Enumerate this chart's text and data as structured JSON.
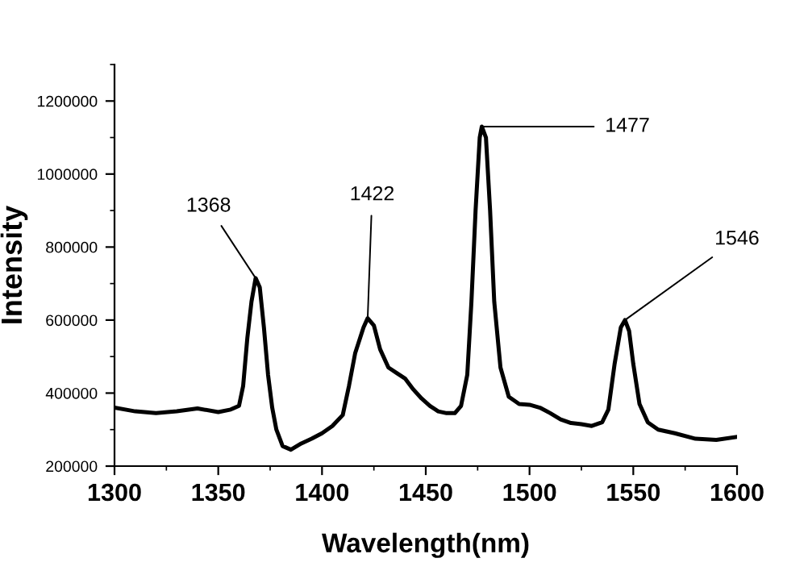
{
  "chart_data": {
    "type": "line",
    "xlabel": "Wavelength(nm)",
    "ylabel": "Intensity",
    "xlim": [
      1300,
      1600
    ],
    "xticks": [
      1300,
      1350,
      1400,
      1450,
      1500,
      1550,
      1600
    ],
    "ylim": [
      200000,
      1300000
    ],
    "yticks": [
      200000,
      400000,
      600000,
      800000,
      1000000,
      1200000
    ],
    "grid": false,
    "legend": false,
    "marker": "none",
    "line_style": "solid",
    "series": [
      {
        "color": "#000000",
        "x": [
          1300,
          1310,
          1320,
          1330,
          1340,
          1350,
          1356,
          1360,
          1362,
          1364,
          1366,
          1368,
          1370,
          1372,
          1374,
          1376,
          1378,
          1381,
          1385,
          1390,
          1395,
          1400,
          1405,
          1410,
          1413,
          1416,
          1420,
          1422,
          1425,
          1428,
          1432,
          1436,
          1440,
          1444,
          1448,
          1452,
          1456,
          1460,
          1464,
          1467,
          1470,
          1472,
          1474,
          1476,
          1477,
          1479,
          1481,
          1483,
          1486,
          1490,
          1495,
          1500,
          1505,
          1510,
          1515,
          1520,
          1525,
          1530,
          1535,
          1538,
          1541,
          1544,
          1546,
          1548,
          1550,
          1553,
          1557,
          1562,
          1570,
          1580,
          1590,
          1600
        ],
        "values": [
          360000,
          350000,
          345000,
          350000,
          358000,
          348000,
          355000,
          365000,
          420000,
          550000,
          650000,
          715000,
          690000,
          580000,
          450000,
          360000,
          300000,
          255000,
          245000,
          262000,
          275000,
          290000,
          310000,
          340000,
          420000,
          510000,
          580000,
          605000,
          585000,
          520000,
          470000,
          455000,
          440000,
          410000,
          385000,
          365000,
          350000,
          345000,
          345000,
          365000,
          450000,
          650000,
          900000,
          1100000,
          1130000,
          1100000,
          900000,
          650000,
          470000,
          390000,
          370000,
          368000,
          360000,
          345000,
          328000,
          318000,
          315000,
          310000,
          320000,
          355000,
          480000,
          580000,
          600000,
          570000,
          480000,
          370000,
          320000,
          300000,
          290000,
          275000,
          272000,
          280000
        ]
      }
    ],
    "annotations": [
      {
        "text": "1368",
        "x": 1368,
        "y": 715000
      },
      {
        "text": "1422",
        "x": 1422,
        "y": 605000
      },
      {
        "text": "1477",
        "x": 1477,
        "y": 1130000
      },
      {
        "text": "1546",
        "x": 1546,
        "y": 600000
      }
    ]
  }
}
